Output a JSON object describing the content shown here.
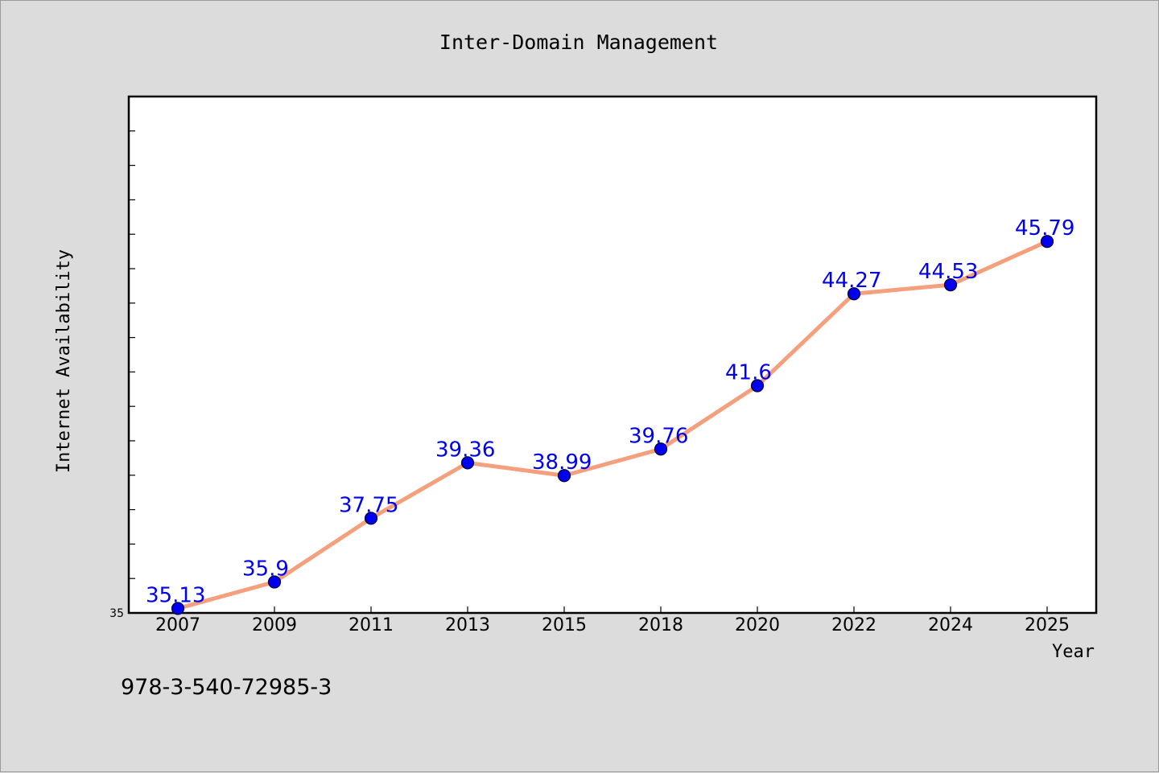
{
  "chart_data": {
    "type": "line",
    "title": "Inter-Domain Management",
    "xlabel": "Year",
    "ylabel": "Internet Availability",
    "categories": [
      "2007",
      "2009",
      "2011",
      "2013",
      "2015",
      "2018",
      "2020",
      "2022",
      "2024",
      "2025"
    ],
    "values": [
      35.13,
      35.9,
      37.75,
      39.36,
      38.99,
      39.76,
      41.6,
      44.27,
      44.53,
      45.79
    ],
    "data_labels": [
      "35.13",
      "35.9",
      "37.75",
      "39.36",
      "38.99",
      "39.76",
      "41.6",
      "44.27",
      "44.53",
      "45.79"
    ],
    "ylim": [
      35,
      50
    ],
    "y_tick_labels": [
      "35"
    ],
    "grid": false,
    "legend": "none",
    "line_color": "#f4a07c",
    "marker_color": "#0000ee",
    "label_color": "#0000ee"
  },
  "footer_note": "978-3-540-72985-3"
}
